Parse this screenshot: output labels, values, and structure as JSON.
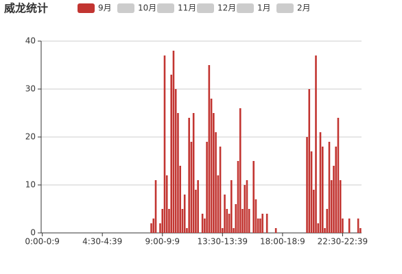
{
  "chart_data": {
    "type": "bar",
    "title": "威龙统计",
    "legend": [
      {
        "name": "9月",
        "color": "#c23531"
      },
      {
        "name": "10月",
        "color": "#cccccc"
      },
      {
        "name": "11月",
        "color": "#cccccc"
      },
      {
        "name": "12月",
        "color": "#cccccc"
      },
      {
        "name": "1月",
        "color": "#cccccc"
      },
      {
        "name": "2月",
        "color": "#cccccc"
      }
    ],
    "categories": [
      "0:00-0:9",
      null,
      null,
      null,
      null,
      null,
      null,
      null,
      null,
      null,
      null,
      null,
      null,
      null,
      null,
      null,
      null,
      null,
      null,
      null,
      null,
      null,
      null,
      null,
      null,
      null,
      null,
      "4:30-4:39",
      null,
      null,
      null,
      null,
      null,
      null,
      null,
      null,
      null,
      null,
      null,
      null,
      null,
      null,
      null,
      null,
      null,
      null,
      null,
      null,
      null,
      null,
      null,
      null,
      null,
      null,
      "9:00-9:9",
      null,
      null,
      null,
      null,
      null,
      null,
      null,
      null,
      null,
      null,
      null,
      null,
      null,
      null,
      null,
      null,
      null,
      null,
      null,
      null,
      null,
      null,
      null,
      null,
      null,
      null,
      "13:30-13:39",
      null,
      null,
      null,
      null,
      null,
      null,
      null,
      null,
      null,
      null,
      null,
      null,
      null,
      null,
      null,
      null,
      null,
      null,
      null,
      null,
      null,
      null,
      null,
      null,
      null,
      null,
      "18:00-18:9",
      null,
      null,
      null,
      null,
      null,
      null,
      null,
      null,
      null,
      null,
      null,
      null,
      null,
      null,
      null,
      null,
      null,
      null,
      null,
      null,
      null,
      null,
      null,
      null,
      null,
      null,
      "22:30-22:39",
      null,
      null,
      null,
      null,
      null,
      null,
      null,
      null
    ],
    "series": [
      {
        "name": "9月",
        "color": "#c23531",
        "values": [
          0,
          0,
          0,
          0,
          0,
          0,
          0,
          0,
          0,
          0,
          0,
          0,
          0,
          0,
          0,
          0,
          0,
          0,
          0,
          0,
          0,
          0,
          0,
          0,
          0,
          0,
          0,
          0,
          0,
          0,
          0,
          0,
          0,
          0,
          0,
          0,
          0,
          0,
          0,
          0,
          0,
          0,
          0,
          0,
          0,
          0,
          0,
          0,
          0,
          2,
          3,
          11,
          0,
          2,
          5,
          37,
          12,
          5,
          33,
          38,
          30,
          25,
          14,
          5,
          8,
          1,
          24,
          19,
          25,
          9,
          11,
          0,
          4,
          3,
          19,
          35,
          28,
          25,
          21,
          12,
          18,
          1,
          8,
          5,
          4,
          11,
          1,
          6,
          15,
          26,
          5,
          10,
          11,
          5,
          0,
          15,
          7,
          3,
          3,
          4,
          0,
          4,
          0,
          0,
          0,
          1,
          0,
          0,
          0,
          0,
          0,
          0,
          0,
          0,
          0,
          0,
          0,
          0,
          0,
          20,
          30,
          17,
          9,
          37,
          2,
          21,
          18,
          1,
          5,
          19,
          11,
          14,
          18,
          24,
          11,
          3,
          0,
          0,
          3,
          0,
          0,
          0,
          3,
          1
        ]
      }
    ],
    "ylim": [
      0,
      40
    ],
    "yticks": [
      0,
      10,
      20,
      30,
      40
    ],
    "grid": true
  }
}
